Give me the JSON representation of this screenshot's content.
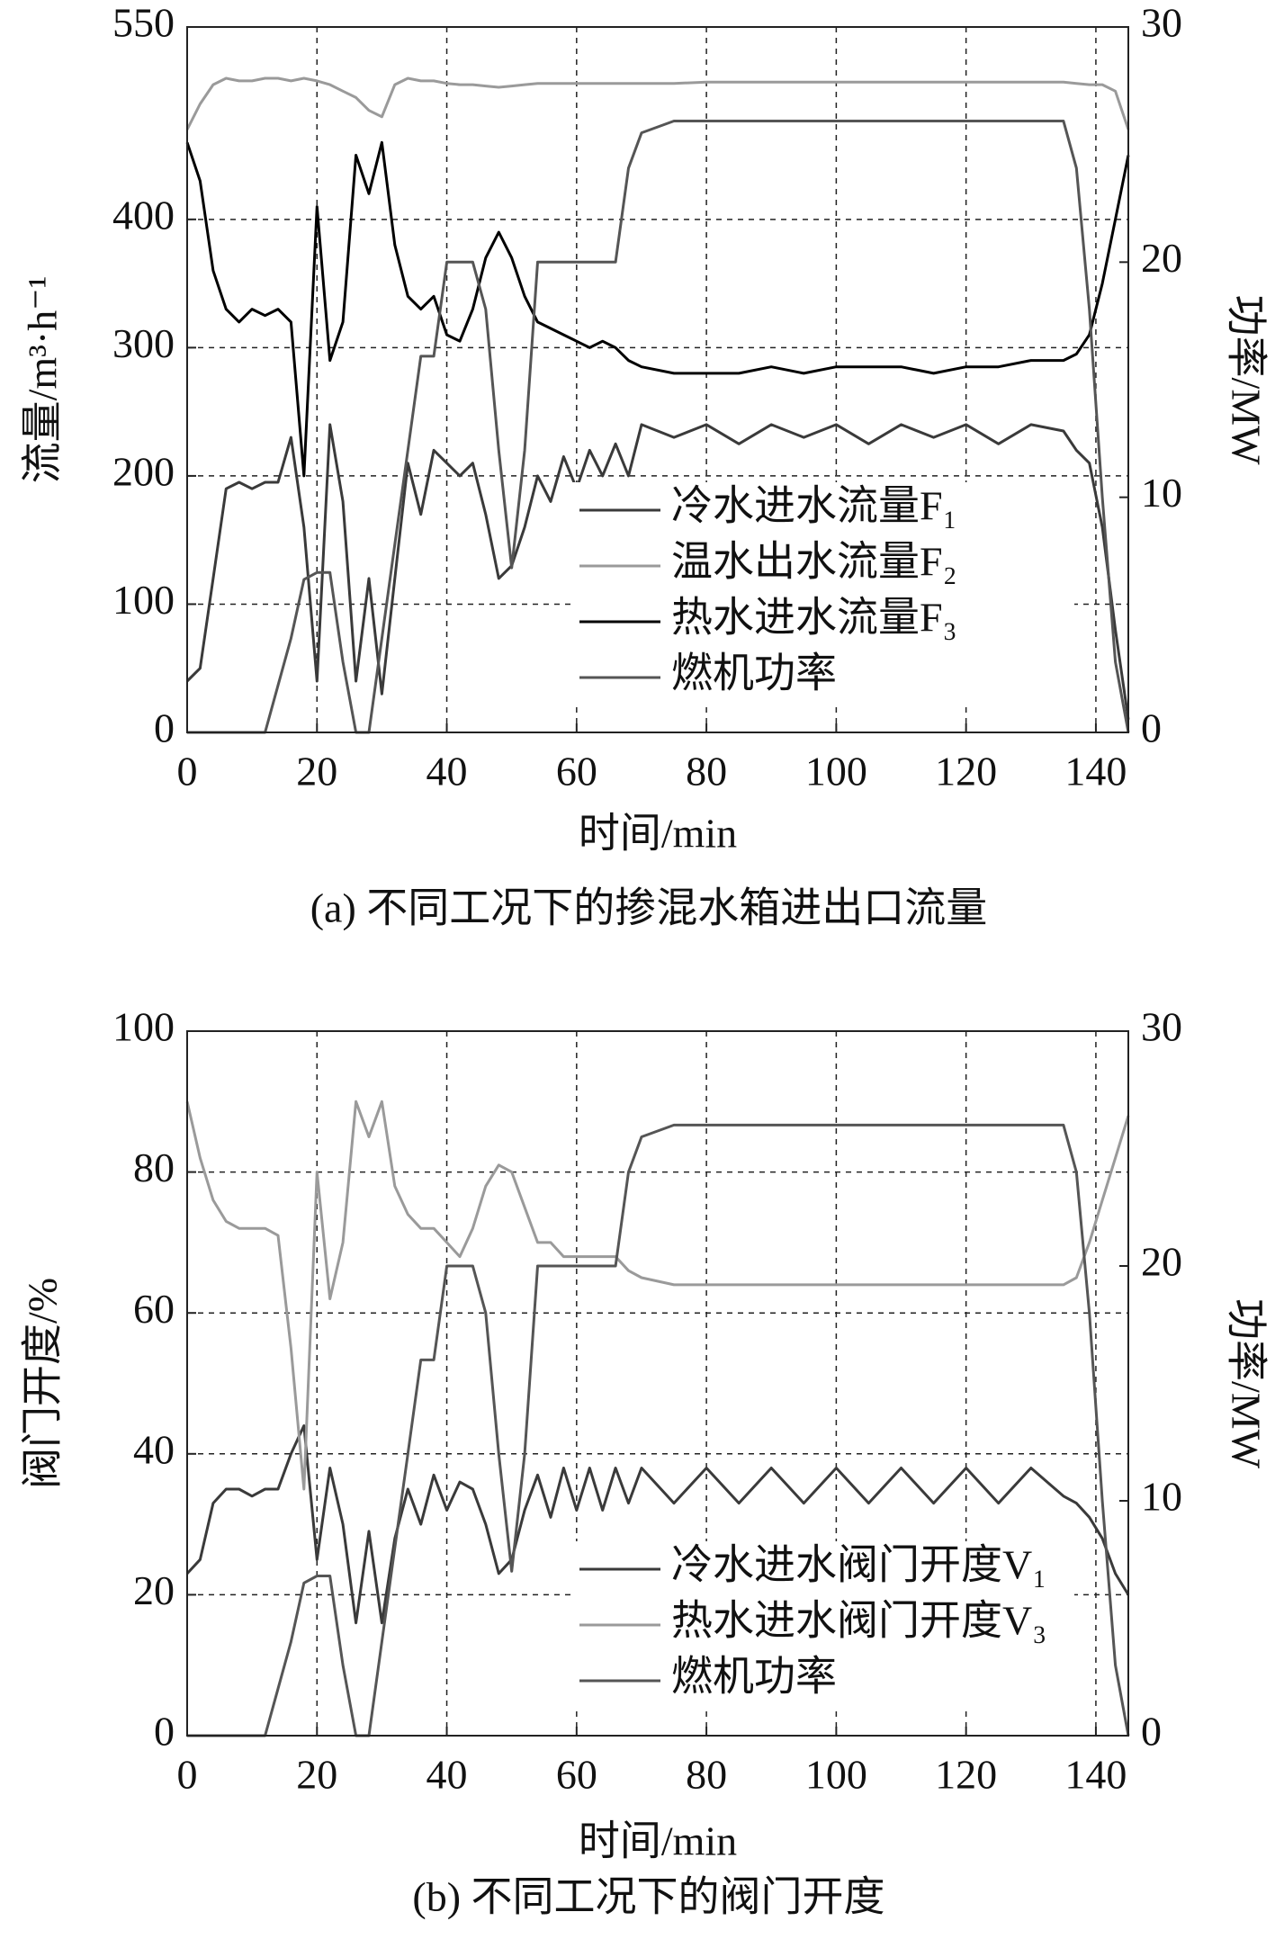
{
  "chart_data": [
    {
      "type": "line",
      "caption": "(a) 不同工况下的掺混水箱进出口流量",
      "xlabel": "时间/min",
      "ylabel": "流量/m³·h⁻¹",
      "y2label": "功率/MW",
      "x": [
        0,
        2,
        4,
        6,
        8,
        10,
        12,
        14,
        16,
        18,
        20,
        22,
        24,
        26,
        28,
        30,
        32,
        34,
        36,
        38,
        40,
        42,
        44,
        46,
        48,
        50,
        52,
        54,
        56,
        58,
        60,
        62,
        64,
        66,
        68,
        70,
        75,
        80,
        85,
        90,
        95,
        100,
        105,
        110,
        115,
        120,
        125,
        130,
        135,
        137,
        139,
        141,
        143,
        145
      ],
      "xlim": [
        0,
        145
      ],
      "xticks": [
        0,
        20,
        40,
        60,
        80,
        100,
        120,
        140
      ],
      "ylim": [
        0,
        550
      ],
      "yticks": [
        0,
        100,
        200,
        300,
        400,
        550
      ],
      "y2lim": [
        0,
        30
      ],
      "y2ticks": [
        0,
        10,
        20,
        30
      ],
      "grid": true,
      "legend": "lower right",
      "series": [
        {
          "name": "冷水进水流量F₁",
          "color": "#3a3a3a",
          "values": [
            40,
            50,
            120,
            190,
            195,
            190,
            195,
            195,
            230,
            160,
            40,
            240,
            180,
            40,
            120,
            30,
            120,
            210,
            170,
            220,
            210,
            200,
            210,
            170,
            120,
            130,
            160,
            200,
            180,
            215,
            190,
            220,
            200,
            225,
            200,
            240,
            230,
            240,
            225,
            240,
            230,
            240,
            225,
            240,
            230,
            240,
            225,
            240,
            235,
            220,
            210,
            160,
            80,
            10
          ]
        },
        {
          "name": "温水出水流量F₂",
          "color": "#9a9a9a",
          "values": [
            470,
            490,
            505,
            510,
            508,
            508,
            510,
            510,
            508,
            510,
            508,
            505,
            500,
            495,
            485,
            480,
            505,
            510,
            508,
            508,
            506,
            505,
            505,
            504,
            503,
            504,
            505,
            506,
            506,
            506,
            506,
            506,
            506,
            506,
            506,
            506,
            506,
            507,
            507,
            507,
            507,
            507,
            507,
            507,
            507,
            507,
            507,
            507,
            507,
            506,
            505,
            505,
            500,
            470
          ]
        },
        {
          "name": "热水进水流量F₃",
          "color": "#000000",
          "values": [
            460,
            430,
            360,
            330,
            320,
            330,
            325,
            330,
            320,
            200,
            410,
            290,
            320,
            450,
            420,
            460,
            380,
            340,
            330,
            340,
            310,
            305,
            330,
            370,
            390,
            370,
            340,
            320,
            315,
            310,
            305,
            300,
            305,
            300,
            290,
            285,
            280,
            280,
            280,
            285,
            280,
            285,
            285,
            285,
            280,
            285,
            285,
            290,
            290,
            295,
            310,
            350,
            400,
            450
          ]
        },
        {
          "name": "燃机功率",
          "color": "#555555",
          "axis": "y2",
          "values": [
            0,
            0,
            0,
            0,
            0,
            0,
            0,
            2,
            4,
            6.5,
            6.8,
            6.8,
            3,
            0,
            0,
            4,
            8,
            12,
            16,
            16,
            20,
            20,
            20,
            18,
            12,
            7,
            12,
            20,
            20,
            20,
            20,
            20,
            20,
            20,
            24,
            25.5,
            26,
            26,
            26,
            26,
            26,
            26,
            26,
            26,
            26,
            26,
            26,
            26,
            26,
            24,
            18,
            10,
            3,
            0
          ]
        }
      ]
    },
    {
      "type": "line",
      "caption": "(b) 不同工况下的阀门开度",
      "xlabel": "时间/min",
      "ylabel": "阀门开度/%",
      "y2label": "功率/MW",
      "x": [
        0,
        2,
        4,
        6,
        8,
        10,
        12,
        14,
        16,
        18,
        20,
        22,
        24,
        26,
        28,
        30,
        32,
        34,
        36,
        38,
        40,
        42,
        44,
        46,
        48,
        50,
        52,
        54,
        56,
        58,
        60,
        62,
        64,
        66,
        68,
        70,
        75,
        80,
        85,
        90,
        95,
        100,
        105,
        110,
        115,
        120,
        125,
        130,
        135,
        137,
        139,
        141,
        143,
        145
      ],
      "xlim": [
        0,
        145
      ],
      "xticks": [
        0,
        20,
        40,
        60,
        80,
        100,
        120,
        140
      ],
      "ylim": [
        0,
        100
      ],
      "yticks": [
        0,
        20,
        40,
        60,
        80,
        100
      ],
      "y2lim": [
        0,
        30
      ],
      "y2ticks": [
        0,
        10,
        20,
        30
      ],
      "grid": true,
      "legend": "lower right",
      "series": [
        {
          "name": "冷水进水阀门开度V₁",
          "color": "#3a3a3a",
          "values": [
            23,
            25,
            33,
            35,
            35,
            34,
            35,
            35,
            40,
            44,
            25,
            38,
            30,
            16,
            29,
            16,
            28,
            35,
            30,
            37,
            32,
            36,
            35,
            30,
            23,
            25,
            32,
            37,
            31,
            38,
            32,
            38,
            32,
            38,
            33,
            38,
            33,
            38,
            33,
            38,
            33,
            38,
            33,
            38,
            33,
            38,
            33,
            38,
            34,
            33,
            31,
            28,
            23,
            20
          ]
        },
        {
          "name": "热水进水阀门开度V₃",
          "color": "#9a9a9a",
          "values": [
            90,
            82,
            76,
            73,
            72,
            72,
            72,
            71,
            55,
            35,
            80,
            62,
            70,
            90,
            85,
            90,
            78,
            74,
            72,
            72,
            70,
            68,
            72,
            78,
            81,
            80,
            75,
            70,
            70,
            68,
            68,
            68,
            68,
            68,
            66,
            65,
            64,
            64,
            64,
            64,
            64,
            64,
            64,
            64,
            64,
            64,
            64,
            64,
            64,
            65,
            70,
            76,
            82,
            88
          ]
        },
        {
          "name": "燃机功率",
          "color": "#555555",
          "axis": "y2",
          "values": [
            0,
            0,
            0,
            0,
            0,
            0,
            0,
            2,
            4,
            6.5,
            6.8,
            6.8,
            3,
            0,
            0,
            4,
            8,
            12,
            16,
            16,
            20,
            20,
            20,
            18,
            12,
            7,
            12,
            20,
            20,
            20,
            20,
            20,
            20,
            20,
            24,
            25.5,
            26,
            26,
            26,
            26,
            26,
            26,
            26,
            26,
            26,
            26,
            26,
            26,
            26,
            24,
            18,
            10,
            3,
            0
          ]
        }
      ]
    }
  ]
}
